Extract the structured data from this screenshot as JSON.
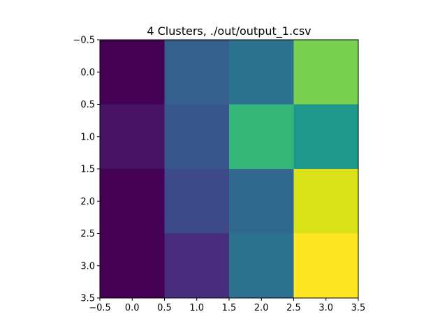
{
  "chart_data": {
    "type": "heatmap",
    "title": "4 Clusters, ./out/output_1.csv",
    "xlabel": "",
    "ylabel": "",
    "xlim": [
      -0.5,
      3.5
    ],
    "ylim": [
      3.5,
      -0.5
    ],
    "y_axis_inverted": true,
    "colormap": "viridis",
    "grid": false,
    "x_ticks": [
      "−0.5",
      "0.0",
      "0.5",
      "1.0",
      "1.5",
      "2.0",
      "2.5",
      "3.0",
      "3.5"
    ],
    "y_ticks": [
      "−0.5",
      "0.0",
      "0.5",
      "1.0",
      "1.5",
      "2.0",
      "2.5",
      "3.0",
      "3.5"
    ],
    "cells": [
      [
        "#440154",
        "#355f8d",
        "#2c728e",
        "#7ad151"
      ],
      [
        "#471365",
        "#39568c",
        "#35b779",
        "#1f988b"
      ],
      [
        "#440154",
        "#3e4989",
        "#31688e",
        "#dae319"
      ],
      [
        "#440154",
        "#472d7b",
        "#2c728e",
        "#fde725"
      ]
    ]
  }
}
